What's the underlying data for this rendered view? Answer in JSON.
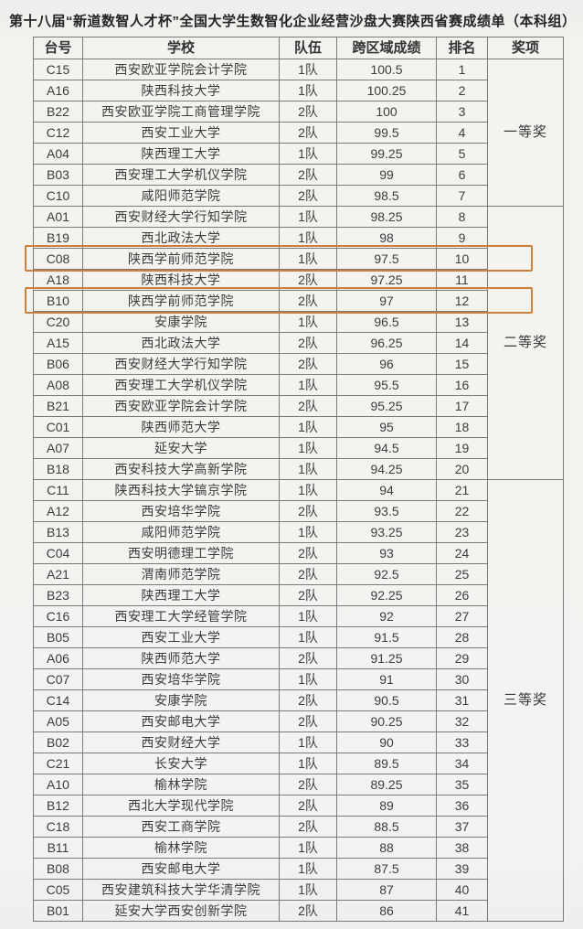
{
  "title": "第十八届“新道数智人才杯”全国大学生数智化企业经营沙盘大赛陕西省赛成绩单（本科组）",
  "highlight_color": "#cd7f3c",
  "table": {
    "columns": [
      "台号",
      "学校",
      "队伍",
      "跨区域成绩",
      "排名",
      "奖项"
    ],
    "award_groups": [
      {
        "label": "一等奖",
        "row_span": 7
      },
      {
        "label": "二等奖",
        "row_span": 13
      },
      {
        "label": "三等奖",
        "row_span": 21
      }
    ],
    "rows": [
      {
        "station": "C15",
        "school": "西安欧亚学院会计学院",
        "team": "1队",
        "score": "100.5",
        "rank": "1",
        "highlighted": false
      },
      {
        "station": "A16",
        "school": "陕西科技大学",
        "team": "1队",
        "score": "100.25",
        "rank": "2",
        "highlighted": false
      },
      {
        "station": "B22",
        "school": "西安欧亚学院工商管理学院",
        "team": "2队",
        "score": "100",
        "rank": "3",
        "highlighted": false
      },
      {
        "station": "C12",
        "school": "西安工业大学",
        "team": "2队",
        "score": "99.5",
        "rank": "4",
        "highlighted": false
      },
      {
        "station": "A04",
        "school": "陕西理工大学",
        "team": "1队",
        "score": "99.25",
        "rank": "5",
        "highlighted": false
      },
      {
        "station": "B03",
        "school": "西安理工大学机仪学院",
        "team": "2队",
        "score": "99",
        "rank": "6",
        "highlighted": false
      },
      {
        "station": "C10",
        "school": "咸阳师范学院",
        "team": "2队",
        "score": "98.5",
        "rank": "7",
        "highlighted": false
      },
      {
        "station": "A01",
        "school": "西安财经大学行知学院",
        "team": "1队",
        "score": "98.25",
        "rank": "8",
        "highlighted": false
      },
      {
        "station": "B19",
        "school": "西北政法大学",
        "team": "1队",
        "score": "98",
        "rank": "9",
        "highlighted": false
      },
      {
        "station": "C08",
        "school": "陕西学前师范学院",
        "team": "1队",
        "score": "97.5",
        "rank": "10",
        "highlighted": true
      },
      {
        "station": "A18",
        "school": "陕西科技大学",
        "team": "2队",
        "score": "97.25",
        "rank": "11",
        "highlighted": false
      },
      {
        "station": "B10",
        "school": "陕西学前师范学院",
        "team": "2队",
        "score": "97",
        "rank": "12",
        "highlighted": true
      },
      {
        "station": "C20",
        "school": "安康学院",
        "team": "1队",
        "score": "96.5",
        "rank": "13",
        "highlighted": false
      },
      {
        "station": "A15",
        "school": "西北政法大学",
        "team": "2队",
        "score": "96.25",
        "rank": "14",
        "highlighted": false
      },
      {
        "station": "B06",
        "school": "西安财经大学行知学院",
        "team": "2队",
        "score": "96",
        "rank": "15",
        "highlighted": false
      },
      {
        "station": "A08",
        "school": "西安理工大学机仪学院",
        "team": "1队",
        "score": "95.5",
        "rank": "16",
        "highlighted": false
      },
      {
        "station": "B21",
        "school": "西安欧亚学院会计学院",
        "team": "2队",
        "score": "95.25",
        "rank": "17",
        "highlighted": false
      },
      {
        "station": "C01",
        "school": "陕西师范大学",
        "team": "1队",
        "score": "95",
        "rank": "18",
        "highlighted": false
      },
      {
        "station": "A07",
        "school": "延安大学",
        "team": "1队",
        "score": "94.5",
        "rank": "19",
        "highlighted": false
      },
      {
        "station": "B18",
        "school": "西安科技大学高新学院",
        "team": "1队",
        "score": "94.25",
        "rank": "20",
        "highlighted": false
      },
      {
        "station": "C11",
        "school": "陕西科技大学镐京学院",
        "team": "1队",
        "score": "94",
        "rank": "21",
        "highlighted": false
      },
      {
        "station": "A12",
        "school": "西安培华学院",
        "team": "2队",
        "score": "93.5",
        "rank": "22",
        "highlighted": false
      },
      {
        "station": "B13",
        "school": "咸阳师范学院",
        "team": "1队",
        "score": "93.25",
        "rank": "23",
        "highlighted": false
      },
      {
        "station": "C04",
        "school": "西安明德理工学院",
        "team": "2队",
        "score": "93",
        "rank": "24",
        "highlighted": false
      },
      {
        "station": "A21",
        "school": "渭南师范学院",
        "team": "2队",
        "score": "92.5",
        "rank": "25",
        "highlighted": false
      },
      {
        "station": "B23",
        "school": "陕西理工大学",
        "team": "2队",
        "score": "92.25",
        "rank": "26",
        "highlighted": false
      },
      {
        "station": "C16",
        "school": "西安理工大学经管学院",
        "team": "1队",
        "score": "92",
        "rank": "27",
        "highlighted": false
      },
      {
        "station": "B05",
        "school": "西安工业大学",
        "team": "1队",
        "score": "91.5",
        "rank": "28",
        "highlighted": false
      },
      {
        "station": "A06",
        "school": "陕西师范大学",
        "team": "2队",
        "score": "91.25",
        "rank": "29",
        "highlighted": false
      },
      {
        "station": "C07",
        "school": "西安培华学院",
        "team": "1队",
        "score": "91",
        "rank": "30",
        "highlighted": false
      },
      {
        "station": "C14",
        "school": "安康学院",
        "team": "2队",
        "score": "90.5",
        "rank": "31",
        "highlighted": false
      },
      {
        "station": "A05",
        "school": "西安邮电大学",
        "team": "2队",
        "score": "90.25",
        "rank": "32",
        "highlighted": false
      },
      {
        "station": "B02",
        "school": "西安财经大学",
        "team": "1队",
        "score": "90",
        "rank": "33",
        "highlighted": false
      },
      {
        "station": "C21",
        "school": "长安大学",
        "team": "1队",
        "score": "89.5",
        "rank": "34",
        "highlighted": false
      },
      {
        "station": "A10",
        "school": "榆林学院",
        "team": "2队",
        "score": "89.25",
        "rank": "35",
        "highlighted": false
      },
      {
        "station": "B12",
        "school": "西北大学现代学院",
        "team": "2队",
        "score": "89",
        "rank": "36",
        "highlighted": false
      },
      {
        "station": "C18",
        "school": "西安工商学院",
        "team": "2队",
        "score": "88.5",
        "rank": "37",
        "highlighted": false
      },
      {
        "station": "B11",
        "school": "榆林学院",
        "team": "1队",
        "score": "88",
        "rank": "38",
        "highlighted": false
      },
      {
        "station": "B08",
        "school": "西安邮电大学",
        "team": "1队",
        "score": "87.5",
        "rank": "39",
        "highlighted": false
      },
      {
        "station": "C05",
        "school": "西安建筑科技大学华清学院",
        "team": "1队",
        "score": "87",
        "rank": "40",
        "highlighted": false
      },
      {
        "station": "B01",
        "school": "延安大学西安创新学院",
        "team": "2队",
        "score": "86",
        "rank": "41",
        "highlighted": false
      }
    ]
  }
}
